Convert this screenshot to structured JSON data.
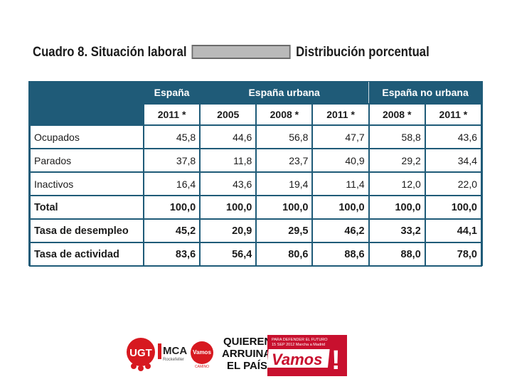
{
  "title": {
    "left": "Cuadro 8. Situación laboral",
    "right": "Distribución porcentual"
  },
  "table": {
    "groups": [
      "España",
      "España urbana",
      "España no urbana"
    ],
    "years": [
      "2011 *",
      "2005",
      "2008 *",
      "2011 *",
      "2008 *",
      "2011 *"
    ],
    "rows": [
      {
        "label": "Ocupados",
        "values": [
          "45,8",
          "44,6",
          "56,8",
          "47,7",
          "58,8",
          "43,6"
        ]
      },
      {
        "label": "Parados",
        "values": [
          "37,8",
          "11,8",
          "23,7",
          "40,9",
          "29,2",
          "34,4"
        ]
      },
      {
        "label": "Inactivos",
        "values": [
          "16,4",
          "43,6",
          "19,4",
          "11,4",
          "12,0",
          "22,0"
        ]
      },
      {
        "label": "Total",
        "values": [
          "100,0",
          "100,0",
          "100,0",
          "100,0",
          "100,0",
          "100,0"
        ]
      },
      {
        "label": "Tasa de desempleo",
        "values": [
          "45,2",
          "20,9",
          "29,5",
          "46,2",
          "33,2",
          "44,1"
        ]
      },
      {
        "label": "Tasa de actividad",
        "values": [
          "83,6",
          "56,4",
          "80,6",
          "88,6",
          "88,0",
          "78,0"
        ]
      }
    ]
  },
  "logos": {
    "ugt": "UGT",
    "mca": "MCA",
    "mca_sub": "Rockefeller",
    "vamos_small": "Vamos",
    "vamos_small_sub": "CAMINO",
    "slogan": [
      "QUIEREN",
      "ARRUINAR",
      "EL PAÍS"
    ],
    "banner_lines": [
      "PARA DEFENDER EL FUTURO",
      "15 SEP 2012  Marcha a Madrid"
    ],
    "banner_big": "Vamos",
    "banner_mark": "!"
  },
  "colors": {
    "header_bg": "#1f5b78",
    "ugt_red": "#d71920",
    "banner_red": "#c8102e"
  }
}
